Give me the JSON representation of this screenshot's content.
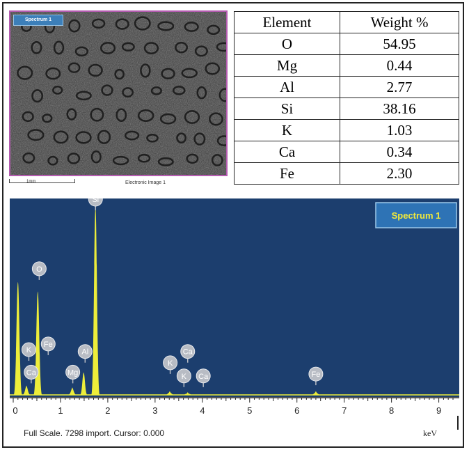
{
  "micrograph": {
    "tag": "Spectrum 1",
    "scale_label": "1mm",
    "caption": "Electronic Image 1"
  },
  "table": {
    "headers": [
      "Element",
      "Weight %"
    ],
    "rows": [
      [
        "O",
        "54.95"
      ],
      [
        "Mg",
        "0.44"
      ],
      [
        "Al",
        "2.77"
      ],
      [
        "Si",
        "38.16"
      ],
      [
        "K",
        "1.03"
      ],
      [
        "Ca",
        "0.34"
      ],
      [
        "Fe",
        "2.30"
      ]
    ]
  },
  "spectrum": {
    "legend": "Spectrum 1",
    "footer": "Full Scale. 7298 import. Cursor: 0.000",
    "unit": "keV"
  },
  "colors": {
    "plot_bg": "#1c3e6e",
    "peak": "#eded3a",
    "legend_bg": "#2e73b5",
    "legend_text": "#f2e93a",
    "label_circle": "#b8bcc4"
  },
  "chart_data": {
    "type": "area",
    "x_ticks": [
      0,
      1,
      2,
      3,
      4,
      5,
      6,
      7,
      8,
      9
    ],
    "xlabel": "keV",
    "xlim": [
      0,
      9.4
    ],
    "ylim": [
      0,
      1
    ],
    "series": [
      {
        "name": "Spectrum 1",
        "peaks": [
          {
            "x": 0.1,
            "height": 0.6
          },
          {
            "x": 0.28,
            "height": 0.05
          },
          {
            "x": 0.52,
            "height": 0.55
          },
          {
            "x": 1.25,
            "height": 0.04
          },
          {
            "x": 1.49,
            "height": 0.12
          },
          {
            "x": 1.74,
            "height": 1.0
          },
          {
            "x": 3.31,
            "height": 0.02
          },
          {
            "x": 3.69,
            "height": 0.015
          },
          {
            "x": 6.4,
            "height": 0.02
          }
        ]
      }
    ],
    "peak_labels": [
      {
        "label": "Si",
        "x": 1.74,
        "height": 1.0
      },
      {
        "label": "O",
        "x": 0.55,
        "height": 0.63
      },
      {
        "label": "K",
        "x": 0.33,
        "height": 0.2
      },
      {
        "label": "Fe",
        "x": 0.74,
        "height": 0.23
      },
      {
        "label": "Ca",
        "x": 0.38,
        "height": 0.08
      },
      {
        "label": "Mg",
        "x": 1.26,
        "height": 0.08
      },
      {
        "label": "Al",
        "x": 1.52,
        "height": 0.19
      },
      {
        "label": "K",
        "x": 3.32,
        "height": 0.13
      },
      {
        "label": "Ca",
        "x": 3.69,
        "height": 0.19
      },
      {
        "label": "K",
        "x": 3.61,
        "height": 0.06
      },
      {
        "label": "Ca",
        "x": 4.02,
        "height": 0.06
      },
      {
        "label": "Fe",
        "x": 6.4,
        "height": 0.07
      }
    ]
  }
}
